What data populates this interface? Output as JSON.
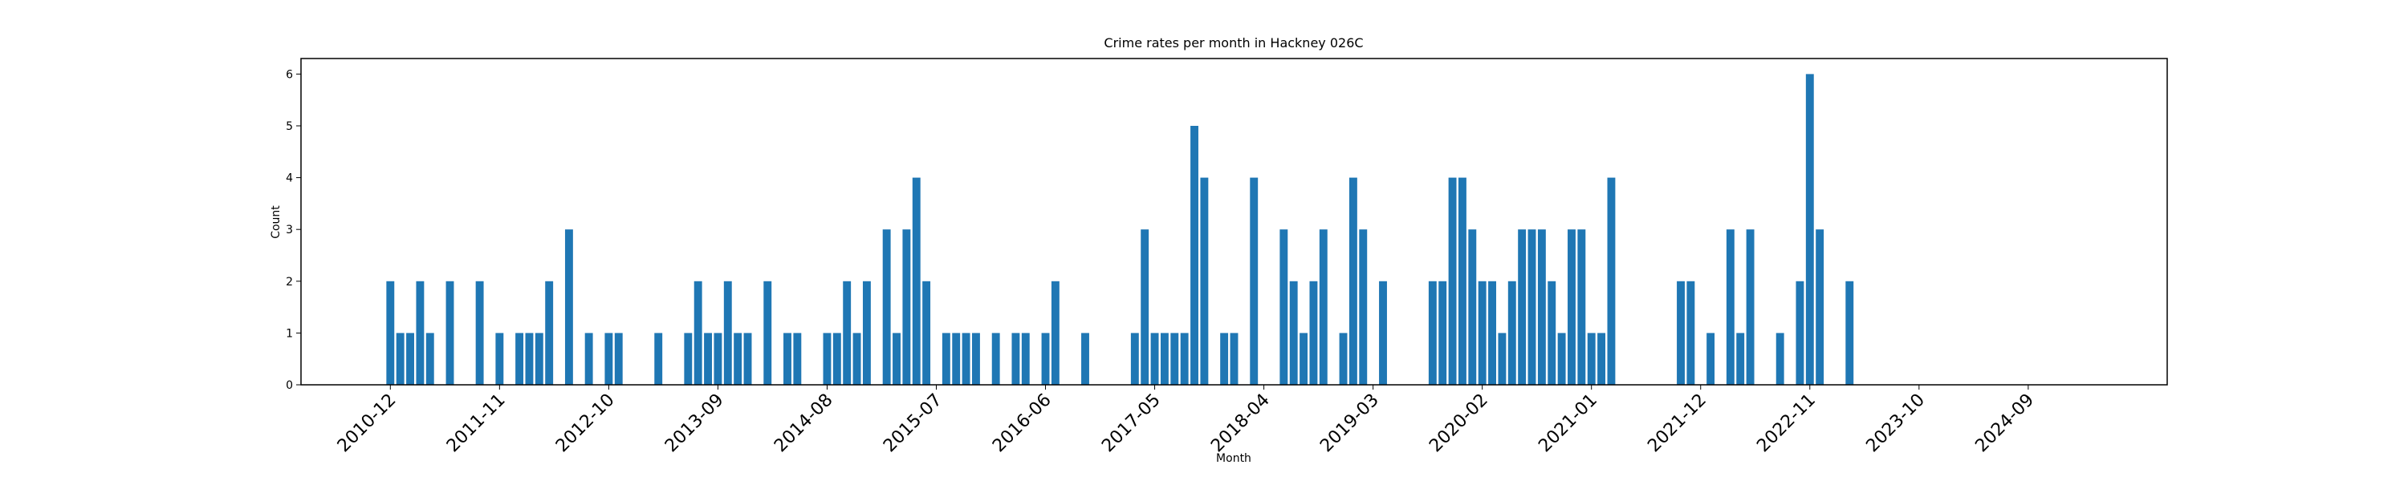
{
  "chart_data": {
    "type": "bar",
    "title": "Crime rates per month in Hackney 026C",
    "x_label": "Month",
    "y_label": "Count",
    "color": "#1f77b4",
    "x": [
      "2010-12",
      "2011-01",
      "2011-02",
      "2011-03",
      "2011-04",
      "2011-06",
      "2011-09",
      "2011-11",
      "2012-01",
      "2012-02",
      "2012-03",
      "2012-04",
      "2012-06",
      "2012-08",
      "2012-10",
      "2012-11",
      "2013-03",
      "2013-06",
      "2013-07",
      "2013-08",
      "2013-09",
      "2013-10",
      "2013-11",
      "2013-12",
      "2014-02",
      "2014-04",
      "2014-05",
      "2014-08",
      "2014-09",
      "2014-10",
      "2014-11",
      "2014-12",
      "2015-02",
      "2015-03",
      "2015-04",
      "2015-05",
      "2015-06",
      "2015-08",
      "2015-09",
      "2015-10",
      "2015-11",
      "2016-01",
      "2016-03",
      "2016-04",
      "2016-06",
      "2016-07",
      "2016-10",
      "2017-03",
      "2017-04",
      "2017-05",
      "2017-06",
      "2017-07",
      "2017-08",
      "2017-09",
      "2017-10",
      "2017-12",
      "2018-01",
      "2018-03",
      "2018-06",
      "2018-07",
      "2018-08",
      "2018-09",
      "2018-10",
      "2018-12",
      "2019-01",
      "2019-02",
      "2019-04",
      "2019-09",
      "2019-10",
      "2019-11",
      "2019-12",
      "2020-01",
      "2020-02",
      "2020-03",
      "2020-04",
      "2020-05",
      "2020-06",
      "2020-07",
      "2020-08",
      "2020-09",
      "2020-10",
      "2020-11",
      "2020-12",
      "2021-01",
      "2021-02",
      "2021-03",
      "2021-10",
      "2021-11",
      "2022-01",
      "2022-03",
      "2022-04",
      "2022-05",
      "2022-08",
      "2022-10",
      "2022-11",
      "2022-12",
      "2023-03"
    ],
    "values": [
      2,
      1,
      1,
      2,
      1,
      2,
      2,
      1,
      1,
      1,
      1,
      2,
      3,
      1,
      1,
      1,
      1,
      1,
      2,
      1,
      1,
      2,
      1,
      1,
      2,
      1,
      1,
      1,
      1,
      2,
      1,
      2,
      3,
      1,
      3,
      4,
      2,
      1,
      1,
      1,
      1,
      1,
      1,
      1,
      1,
      2,
      1,
      1,
      3,
      1,
      1,
      1,
      1,
      5,
      4,
      1,
      1,
      4,
      3,
      2,
      1,
      2,
      3,
      1,
      4,
      3,
      2,
      2,
      2,
      4,
      4,
      3,
      2,
      2,
      1,
      2,
      3,
      3,
      3,
      2,
      1,
      3,
      3,
      1,
      1,
      4,
      2,
      2,
      1,
      3,
      1,
      3,
      1,
      2,
      6,
      3,
      2
    ],
    "xlim": [
      "2010-03",
      "2025-11"
    ],
    "xticks": [
      "2010-12",
      "2011-11",
      "2012-10",
      "2013-09",
      "2014-08",
      "2015-07",
      "2016-06",
      "2017-05",
      "2018-04",
      "2019-03",
      "2020-02",
      "2021-01",
      "2021-12",
      "2022-11",
      "2023-10",
      "2024-09"
    ],
    "ylim": [
      0,
      6.3
    ],
    "yticks": [
      0,
      1,
      2,
      3,
      4,
      5,
      6
    ]
  }
}
